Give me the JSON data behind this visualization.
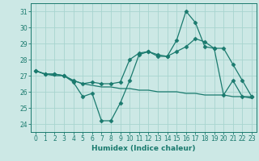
{
  "xlabel": "Humidex (Indice chaleur)",
  "bg_color": "#cce8e5",
  "grid_color": "#a8d4cf",
  "line_color": "#1a7a6e",
  "xlim": [
    -0.5,
    23.5
  ],
  "ylim": [
    23.5,
    31.5
  ],
  "yticks": [
    24,
    25,
    26,
    27,
    28,
    29,
    30,
    31
  ],
  "xticks": [
    0,
    1,
    2,
    3,
    4,
    5,
    6,
    7,
    8,
    9,
    10,
    11,
    12,
    13,
    14,
    15,
    16,
    17,
    18,
    19,
    20,
    21,
    22,
    23
  ],
  "line1_x": [
    0,
    1,
    2,
    3,
    4,
    5,
    6,
    7,
    8,
    9,
    10,
    11,
    12,
    13,
    14,
    15,
    16,
    17,
    18,
    19,
    20,
    21,
    22,
    23
  ],
  "line1_y": [
    27.3,
    27.1,
    27.1,
    27.0,
    26.6,
    25.7,
    25.9,
    24.2,
    24.2,
    25.3,
    26.7,
    28.3,
    28.5,
    28.2,
    28.2,
    29.2,
    31.0,
    30.3,
    28.8,
    28.7,
    25.8,
    26.7,
    25.7,
    25.7
  ],
  "line2_x": [
    0,
    1,
    2,
    3,
    4,
    5,
    6,
    7,
    8,
    9,
    10,
    11,
    12,
    13,
    14,
    15,
    16,
    17,
    18,
    19,
    20,
    21,
    22,
    23
  ],
  "line2_y": [
    27.3,
    27.1,
    27.0,
    27.0,
    26.7,
    26.5,
    26.4,
    26.3,
    26.3,
    26.2,
    26.2,
    26.1,
    26.1,
    26.0,
    26.0,
    26.0,
    25.9,
    25.9,
    25.8,
    25.8,
    25.8,
    25.7,
    25.7,
    25.6
  ],
  "line3_x": [
    0,
    1,
    2,
    3,
    4,
    5,
    6,
    7,
    8,
    9,
    10,
    11,
    12,
    13,
    14,
    15,
    16,
    17,
    18,
    19,
    20,
    21,
    22,
    23
  ],
  "line3_y": [
    27.3,
    27.1,
    27.1,
    27.0,
    26.7,
    26.5,
    26.6,
    26.5,
    26.5,
    26.6,
    28.0,
    28.4,
    28.5,
    28.3,
    28.2,
    28.5,
    28.8,
    29.3,
    29.1,
    28.7,
    28.7,
    27.7,
    26.7,
    25.7
  ]
}
